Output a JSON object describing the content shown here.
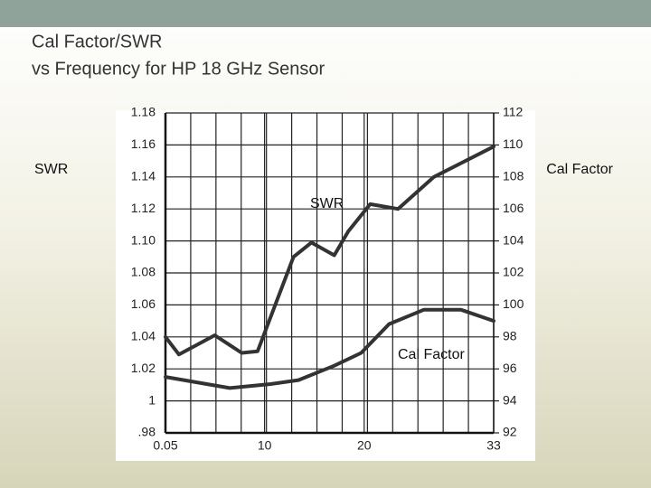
{
  "chart_data": {
    "type": "line",
    "title": "Cal Factor/SWR",
    "subtitle": "vs Frequency for HP  18 GHz Sensor",
    "y_label": "SWR",
    "y2_label": "Cal Factor",
    "annotations": [
      "SWR",
      "Cal Factor"
    ],
    "grid": true,
    "xlim": [
      0.05,
      33
    ],
    "xticks": [
      0.05,
      10,
      20,
      33
    ],
    "ylim": [
      0.98,
      1.18
    ],
    "yticks": [
      {
        "value": 0.98,
        "label": ".98"
      },
      1.02,
      1.04,
      1.06,
      1.08,
      {
        "value": 1.1,
        "label": "1.10"
      },
      1.12,
      1.14,
      1.16,
      1.18,
      {
        "value": 1,
        "label": "1"
      }
    ],
    "y2lim": [
      92,
      112
    ],
    "y2ticks": [
      92,
      94,
      96,
      98,
      100,
      102,
      104,
      106,
      108,
      110,
      112
    ],
    "series": [
      {
        "name": "SWR",
        "color": "#333333",
        "x": [
          0.05,
          1.4,
          5,
          7.7,
          9.3,
          12.9,
          14.7,
          17,
          18.4,
          20.6,
          23.4,
          27,
          33
        ],
        "values": [
          1.04,
          1.029,
          1.041,
          1.03,
          1.031,
          1.09,
          1.099,
          1.091,
          1.106,
          1.123,
          1.12,
          1.14,
          1.159
        ]
      },
      {
        "name": "Cal Factor",
        "color": "#333333",
        "axis": "y2",
        "x": [
          0.05,
          6.5,
          10.6,
          13.4,
          17,
          19.7,
          22.5,
          26,
          29.7,
          33
        ],
        "values": [
          95.5,
          94.8,
          95.05,
          95.3,
          96.2,
          97,
          98.8,
          99.7,
          99.7,
          99
        ]
      }
    ]
  }
}
